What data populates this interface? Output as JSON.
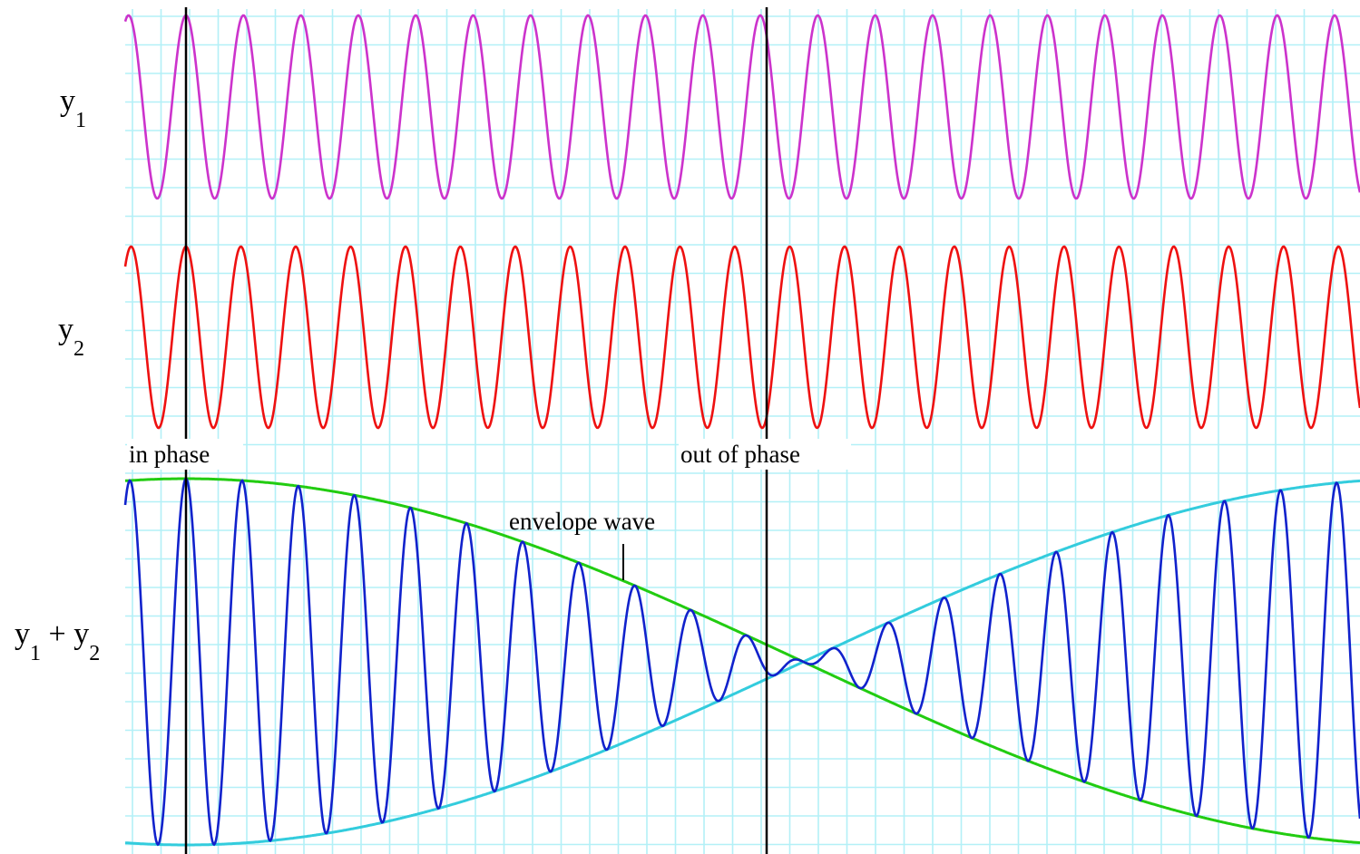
{
  "labels": {
    "y1_main": "y",
    "y1_sub": "1",
    "y2_main": "y",
    "y2_sub": "2",
    "sum_y1": "y",
    "sum_sub1": "1",
    "sum_plus": " + ",
    "sum_y2": "y",
    "sum_sub2": "2",
    "in_phase": "in phase",
    "out_of_phase": "out of phase",
    "envelope": "envelope wave"
  },
  "colors": {
    "grid": "#b3f0f7",
    "y1": "#cc33cc",
    "y2": "#ee1111",
    "sum": "#1122cc",
    "envelope_upper": "#22cc11",
    "envelope_lower": "#33ccdd",
    "marker": "#000000"
  },
  "chart_data": {
    "type": "line",
    "waves": {
      "y1": {
        "cycles": 21.5,
        "amplitude": 1
      },
      "y2": {
        "cycles": 22.5,
        "amplitude": 1
      },
      "sum": {
        "amplitude": 2
      }
    },
    "markers": [
      "in_phase",
      "out_of_phase"
    ]
  }
}
